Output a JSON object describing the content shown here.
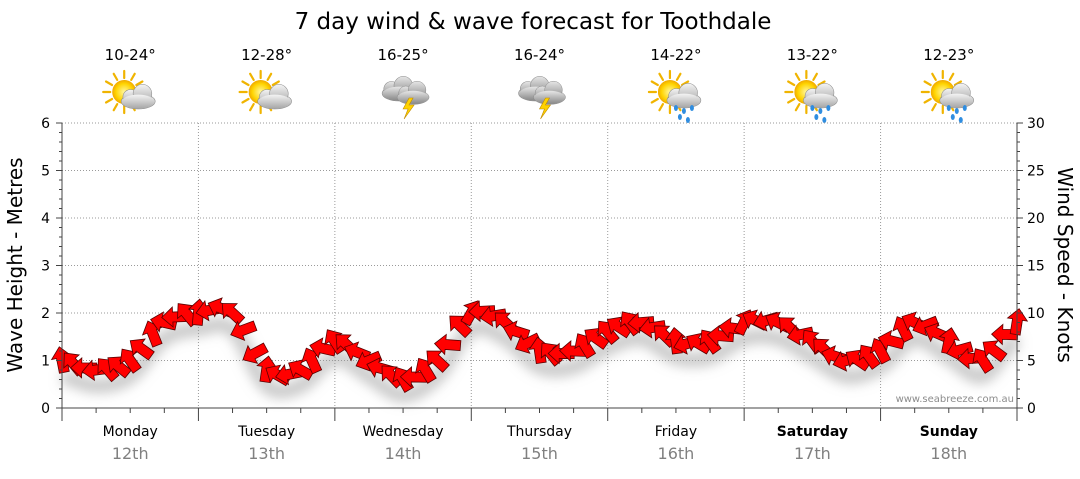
{
  "chart_data": {
    "type": "line",
    "title": "7 day wind & wave forecast for Toothdale",
    "ylabel_left": "Wave Height - Metres",
    "ylabel_right": "Wind Speed - Knots",
    "ylim_left": [
      0,
      6
    ],
    "ylim_right": [
      0,
      30
    ],
    "yticks_left": [
      "0",
      "1",
      "2",
      "3",
      "4",
      "5",
      "6"
    ],
    "yticks_right": [
      "0",
      "5",
      "10",
      "15",
      "20",
      "25",
      "30"
    ],
    "grid": true,
    "watermark": "www.seabreeze.com.au",
    "days": [
      {
        "name": "Monday",
        "date": "12th",
        "temp": "10-24°",
        "icon": "partly-cloudy-icon",
        "bold": false
      },
      {
        "name": "Tuesday",
        "date": "13th",
        "temp": "12-28°",
        "icon": "partly-cloudy-icon",
        "bold": false
      },
      {
        "name": "Wednesday",
        "date": "14th",
        "temp": "16-25°",
        "icon": "thunderstorm-icon",
        "bold": false
      },
      {
        "name": "Thursday",
        "date": "15th",
        "temp": "16-24°",
        "icon": "thunderstorm-icon",
        "bold": false
      },
      {
        "name": "Friday",
        "date": "16th",
        "temp": "14-22°",
        "icon": "sun-showers-icon",
        "bold": false
      },
      {
        "name": "Saturday",
        "date": "17th",
        "temp": "13-22°",
        "icon": "sun-showers-icon",
        "bold": true
      },
      {
        "name": "Sunday",
        "date": "18th",
        "temp": "12-23°",
        "icon": "sun-showers-icon",
        "bold": true
      }
    ],
    "series": [
      {
        "name": "Wind Speed",
        "axis": "right",
        "color": "#ff0000",
        "marker": "arrow",
        "x_hours": [
          0,
          6,
          12,
          18,
          24,
          30,
          36,
          42,
          48,
          54,
          60,
          66,
          72,
          78,
          84,
          90,
          96,
          102,
          108,
          114,
          120,
          126,
          132,
          138,
          144,
          150,
          156,
          162,
          168
        ],
        "values": [
          5,
          4,
          5,
          9,
          10,
          10,
          4,
          4,
          7,
          5,
          3,
          5,
          10,
          9,
          6,
          6,
          8,
          9,
          7,
          7,
          9,
          9,
          7,
          5,
          6,
          9,
          7,
          5,
          9
        ]
      }
    ]
  }
}
